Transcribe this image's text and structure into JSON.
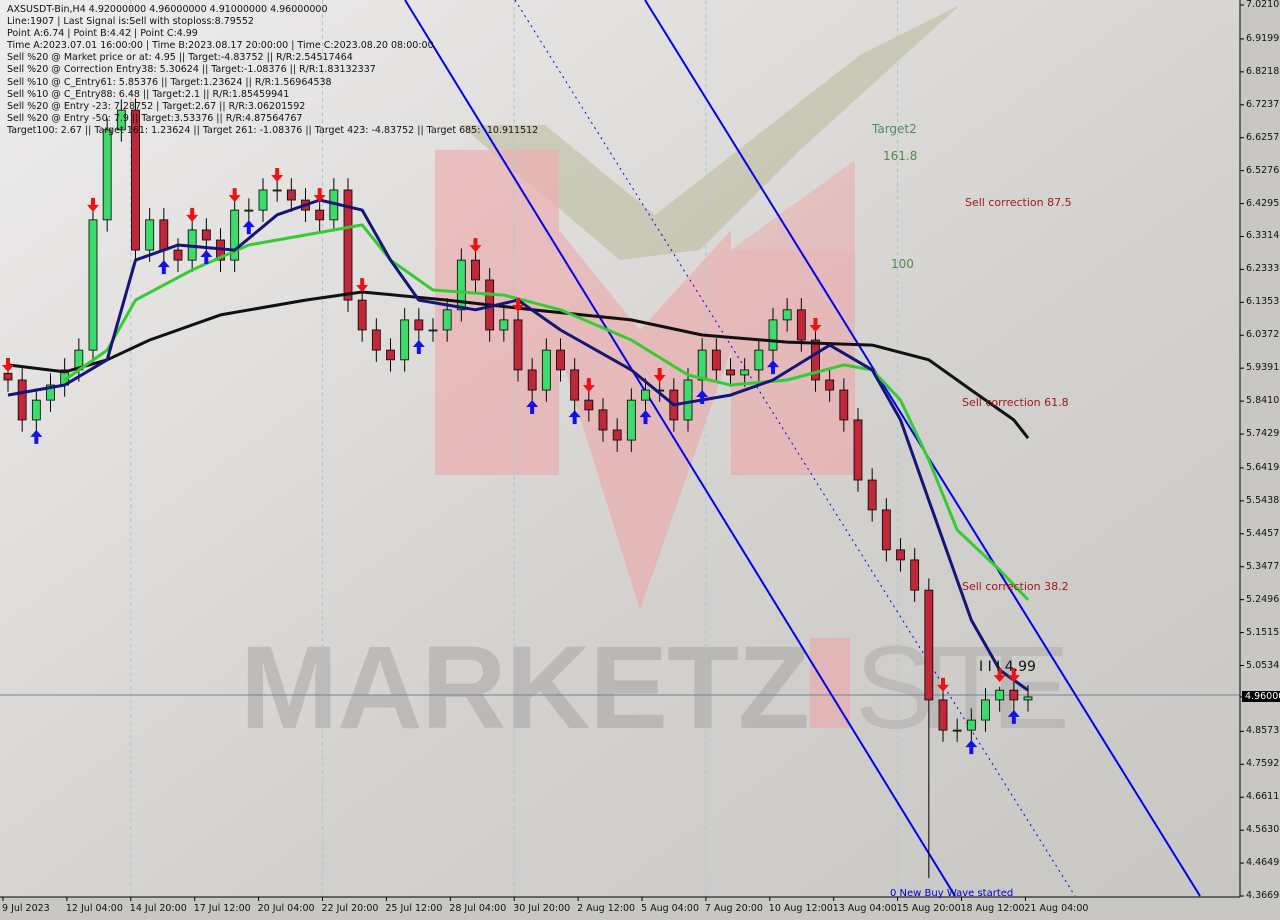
{
  "header": {
    "lines": [
      "AXSUSDT-Bin,H4  4.92000000 4.96000000 4.91000000 4.96000000",
      "Line:1907 | Last Signal is:Sell with stoploss:8.79552",
      "Point A:6.74 | Point B:4.42 | Point C:4.99",
      "Time A:2023.07.01 16:00:00 | Time B:2023.08.17 20:00:00 | Time C:2023.08.20 08:00:00",
      "Sell %20 @ Market price or at: 4.95 || Target:-4.83752 || R/R:2.54517464",
      "Sell %20 @ Correction Entry38: 5.30624 || Target:-1.08376 || R/R:1.83132337",
      "Sell %10 @ C_Entry61: 5.85376 || Target:1.23624 || R/R:1.56964538",
      "Sell %10 @ C_Entry88: 6.48 || Target:2.1 || R/R:1.85459941",
      "Sell %20 @ Entry -23: 7.28752 | Target:2.67 || R/R:3.06201592",
      "Sell %20 @ Entry -50: 7.9 || Target:3.53376 || R/R:4.87564767",
      "Target100: 2.67 || Target 161: 1.23624 || Target 261: -1.08376 || Target 423: -4.83752 || Target 685: -10.911512"
    ]
  },
  "annotations": {
    "target2": "Target2",
    "fib_161": "161.8",
    "fib_100": "100",
    "sell_875": "Sell correction 87.5",
    "sell_618": "Sell correction 61.8",
    "sell_382": "Sell correction 38.2",
    "point_c": "I I I 4.99",
    "wave": "0 New Buy Wave started"
  },
  "colors": {
    "bull": "#3ddc6a",
    "bear": "#c0283a",
    "ma_black": "#111111",
    "ma_green": "#33cc33",
    "ma_navy": "#14147a",
    "channel": "#0000ee",
    "sell_label": "#a01818",
    "fib_label": "#4c8a4c"
  },
  "chart_data": {
    "type": "candlestick",
    "symbol": "AXSUSDT-Bin",
    "timeframe": "H4",
    "ylim": [
      4.36691,
      7.021
    ],
    "current_price": "4.96000",
    "y_ticks": [
      "7.02100",
      "6.91995",
      "6.82187",
      "6.72379",
      "6.62571",
      "6.52763",
      "6.42955",
      "6.33147",
      "6.23339",
      "6.13531",
      "6.03723",
      "5.93915",
      "5.84107",
      "5.74299",
      "5.64194",
      "5.54386",
      "5.44578",
      "5.34770",
      "5.24963",
      "5.15155",
      "5.05347",
      "4.96000",
      "4.85731",
      "4.75923",
      "4.66115",
      "4.56307",
      "4.46499",
      "4.36691"
    ],
    "x_ticks": [
      "9 Jul 2023",
      "12 Jul 04:00",
      "14 Jul 20:00",
      "17 Jul 12:00",
      "20 Jul 04:00",
      "22 Jul 20:00",
      "25 Jul 12:00",
      "28 Jul 04:00",
      "30 Jul 20:00",
      "2 Aug 12:00",
      "5 Aug 04:00",
      "7 Aug 20:00",
      "10 Aug 12:00",
      "13 Aug 04:00",
      "15 Aug 20:00",
      "18 Aug 12:00",
      "21 Aug 04:00"
    ],
    "closes": [
      5.904,
      5.785,
      5.844,
      5.889,
      5.934,
      5.993,
      6.381,
      6.649,
      6.708,
      6.291,
      6.381,
      6.291,
      6.261,
      6.351,
      6.321,
      6.261,
      6.41,
      6.41,
      6.47,
      6.47,
      6.44,
      6.41,
      6.381,
      6.47,
      6.142,
      6.053,
      5.993,
      5.964,
      6.083,
      6.053,
      6.053,
      6.113,
      6.261,
      6.202,
      6.053,
      6.083,
      5.934,
      5.874,
      5.993,
      5.934,
      5.844,
      5.815,
      5.755,
      5.725,
      5.844,
      5.874,
      5.874,
      5.785,
      5.904,
      5.993,
      5.934,
      5.919,
      5.934,
      5.993,
      6.083,
      6.113,
      6.023,
      5.904,
      5.874,
      5.785,
      5.606,
      5.517,
      5.398,
      5.368,
      5.278,
      4.951,
      4.861,
      4.861,
      4.891,
      4.951,
      4.98,
      4.951,
      4.96
    ],
    "extremes": [
      {
        "index": 8,
        "high": 6.74
      },
      {
        "index": 65,
        "low": 4.42
      },
      {
        "index": 70,
        "high": 4.99
      }
    ],
    "ma_black": [
      [
        0,
        5.949
      ],
      [
        4,
        5.928
      ],
      [
        7,
        5.964
      ],
      [
        10,
        6.023
      ],
      [
        15,
        6.098
      ],
      [
        21,
        6.142
      ],
      [
        25,
        6.166
      ],
      [
        31,
        6.142
      ],
      [
        37,
        6.113
      ],
      [
        44,
        6.083
      ],
      [
        49,
        6.038
      ],
      [
        55,
        6.017
      ],
      [
        61,
        6.008
      ],
      [
        65,
        5.964
      ],
      [
        68,
        5.874
      ],
      [
        71,
        5.785
      ],
      [
        72,
        5.731
      ]
    ],
    "ma_green": [
      [
        4,
        5.904
      ],
      [
        7,
        5.993
      ],
      [
        9,
        6.142
      ],
      [
        13,
        6.232
      ],
      [
        17,
        6.306
      ],
      [
        21,
        6.336
      ],
      [
        25,
        6.366
      ],
      [
        27,
        6.261
      ],
      [
        30,
        6.172
      ],
      [
        35,
        6.157
      ],
      [
        39,
        6.113
      ],
      [
        44,
        6.023
      ],
      [
        48,
        5.919
      ],
      [
        51,
        5.889
      ],
      [
        55,
        5.904
      ],
      [
        59,
        5.949
      ],
      [
        61,
        5.934
      ],
      [
        63,
        5.844
      ],
      [
        65,
        5.666
      ],
      [
        67,
        5.457
      ],
      [
        70,
        5.338
      ],
      [
        72,
        5.249
      ]
    ],
    "ma_navy": [
      [
        0,
        5.859
      ],
      [
        4,
        5.889
      ],
      [
        7,
        5.964
      ],
      [
        9,
        6.261
      ],
      [
        12,
        6.306
      ],
      [
        16,
        6.291
      ],
      [
        19,
        6.396
      ],
      [
        22,
        6.44
      ],
      [
        25,
        6.41
      ],
      [
        27,
        6.261
      ],
      [
        29,
        6.142
      ],
      [
        33,
        6.113
      ],
      [
        36,
        6.142
      ],
      [
        39,
        6.053
      ],
      [
        44,
        5.934
      ],
      [
        47,
        5.83
      ],
      [
        51,
        5.859
      ],
      [
        54,
        5.904
      ],
      [
        58,
        6.008
      ],
      [
        61,
        5.934
      ],
      [
        63,
        5.785
      ],
      [
        65,
        5.546
      ],
      [
        68,
        5.189
      ],
      [
        70,
        5.04
      ],
      [
        72,
        4.98
      ]
    ],
    "sell_signals": [
      0,
      6,
      13,
      16,
      19,
      22,
      25,
      33,
      36,
      41,
      46,
      57,
      66,
      70,
      71
    ],
    "buy_signals": [
      2,
      11,
      14,
      17,
      29,
      37,
      40,
      45,
      49,
      54,
      68,
      71
    ]
  }
}
